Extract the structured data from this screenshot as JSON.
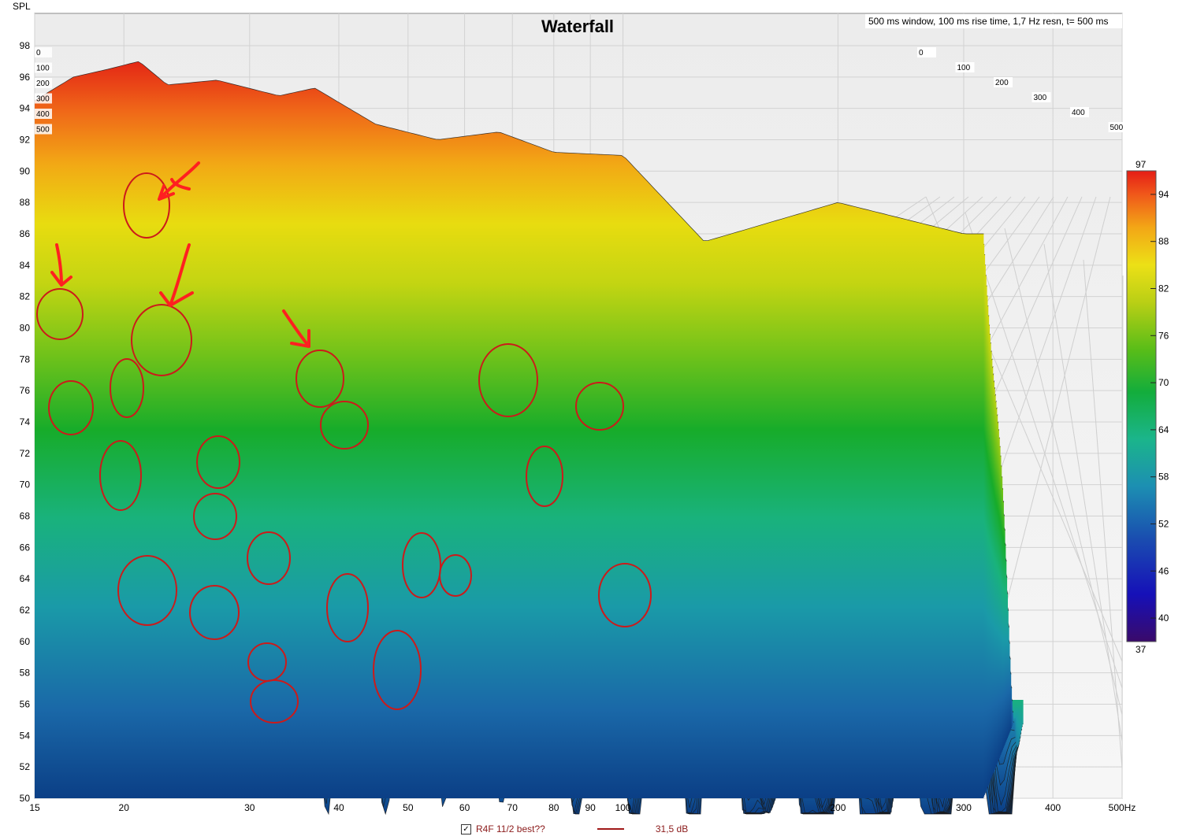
{
  "chart_data": {
    "type": "waterfall",
    "title": "Waterfall",
    "subtitle": "500 ms window, 100 ms rise time,  1,7 Hz resn, t= 500 ms",
    "ylabel": "SPL",
    "xunit": "Hz",
    "ylim": [
      50,
      98
    ],
    "y_ticks": [
      "50",
      "52",
      "54",
      "56",
      "58",
      "60",
      "62",
      "64",
      "66",
      "68",
      "70",
      "72",
      "74",
      "76",
      "78",
      "80",
      "82",
      "84",
      "86",
      "88",
      "90",
      "92",
      "94",
      "96",
      "98"
    ],
    "x_log_range": [
      15,
      500
    ],
    "x_ticks": [
      {
        "value": 15,
        "label": "15"
      },
      {
        "value": 20,
        "label": "20"
      },
      {
        "value": 30,
        "label": "30"
      },
      {
        "value": 40,
        "label": "40"
      },
      {
        "value": 50,
        "label": "50"
      },
      {
        "value": 60,
        "label": "60"
      },
      {
        "value": 70,
        "label": "70"
      },
      {
        "value": 80,
        "label": "80"
      },
      {
        "value": 90,
        "label": "90"
      },
      {
        "value": 100,
        "label": "100"
      },
      {
        "value": 200,
        "label": "200"
      },
      {
        "value": 300,
        "label": "300"
      },
      {
        "value": 400,
        "label": "400"
      },
      {
        "value": 500,
        "label": "500Hz"
      }
    ],
    "time_ticks_ms": [
      "0",
      "100",
      "200",
      "300",
      "400",
      "500"
    ],
    "colorbar": {
      "min_label": "37",
      "max_label": "97",
      "ticks": [
        "94",
        "88",
        "82",
        "76",
        "70",
        "64",
        "58",
        "52",
        "46",
        "40"
      ]
    },
    "front_curve_spl": [
      {
        "hz": 15,
        "spl": 94.5
      },
      {
        "hz": 17,
        "spl": 96.0
      },
      {
        "hz": 19,
        "spl": 96.5
      },
      {
        "hz": 21,
        "spl": 97.0
      },
      {
        "hz": 23,
        "spl": 95.5
      },
      {
        "hz": 27,
        "spl": 95.8
      },
      {
        "hz": 33,
        "spl": 94.8
      },
      {
        "hz": 37,
        "spl": 95.3
      },
      {
        "hz": 45,
        "spl": 93.0
      },
      {
        "hz": 55,
        "spl": 92.0
      },
      {
        "hz": 67,
        "spl": 92.5
      },
      {
        "hz": 80,
        "spl": 91.2
      },
      {
        "hz": 100,
        "spl": 91.0
      },
      {
        "hz": 130,
        "spl": 85.5
      },
      {
        "hz": 200,
        "spl": 88.0
      },
      {
        "hz": 300,
        "spl": 86.0
      }
    ],
    "legend": {
      "entries": [
        {
          "label": "R4F 11/2 best??",
          "value": "31,5 dB",
          "checked": true,
          "color": "#a01818"
        }
      ]
    },
    "grid": true
  },
  "colors": {
    "annotation": "#cc1a1a",
    "arrow": "#ff2020",
    "colormap": [
      "#3a0a6a",
      "#0a1fb0",
      "#1a5ab0",
      "#1b9fb0",
      "#1fba8a",
      "#12b040",
      "#4cbd1c",
      "#a9cc17",
      "#e6dc10",
      "#f3b714",
      "#f07318",
      "#e62215"
    ]
  }
}
